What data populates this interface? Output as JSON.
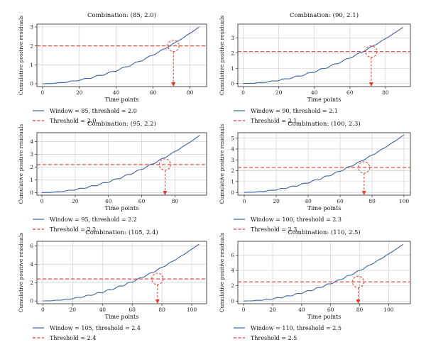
{
  "figure": {
    "colors": {
      "series": "#3a63a8",
      "threshold": "#e8392a",
      "grid": "#c8c8c8"
    }
  },
  "chart_data": [
    {
      "type": "line",
      "title": "Combination: (85, 2.0)",
      "xlabel": "Time points",
      "ylabel": "Cumulative positive residuals",
      "xlim": [
        -3,
        89
      ],
      "ylim": [
        -0.15,
        3.15
      ],
      "xticks": [
        0,
        20,
        40,
        60,
        80
      ],
      "yticks": [
        0,
        1,
        2,
        3
      ],
      "grid": true,
      "window": 85,
      "end_value": 3.0,
      "threshold": 2.0,
      "crossing_x": 71,
      "series_label": "Window = 85, threshold = 2.0",
      "threshold_label": "Threshold = 2.0"
    },
    {
      "type": "line",
      "title": "Combination: (90, 2.1)",
      "xlabel": "Time points",
      "ylabel": "Cumulative positive residuals",
      "xlim": [
        -3,
        94
      ],
      "ylim": [
        -0.2,
        3.9
      ],
      "xticks": [
        0,
        20,
        40,
        60,
        80
      ],
      "yticks": [
        0,
        1,
        2,
        3
      ],
      "grid": true,
      "window": 90,
      "end_value": 3.7,
      "threshold": 2.1,
      "crossing_x": 72,
      "series_label": "Window = 90, threshold = 2.1",
      "threshold_label": "Threshold = 2.1"
    },
    {
      "type": "line",
      "title": "Combination: (95, 2.2)",
      "xlabel": "Time points",
      "ylabel": "Cumulative positive residuals",
      "xlim": [
        -3,
        99
      ],
      "ylim": [
        -0.2,
        4.7
      ],
      "xticks": [
        0,
        20,
        40,
        60,
        80
      ],
      "yticks": [
        0,
        1,
        2,
        3,
        4
      ],
      "grid": true,
      "window": 95,
      "end_value": 4.5,
      "threshold": 2.2,
      "crossing_x": 74,
      "series_label": "Window = 95, threshold = 2.2",
      "threshold_label": "Threshold = 2.2"
    },
    {
      "type": "line",
      "title": "Combination: (100, 2.3)",
      "xlabel": "Time points",
      "ylabel": "Cumulative positive residuals",
      "xlim": [
        -4,
        104
      ],
      "ylim": [
        -0.25,
        5.5
      ],
      "xticks": [
        0,
        20,
        40,
        60,
        80,
        100
      ],
      "yticks": [
        0,
        1,
        2,
        3,
        4,
        5
      ],
      "grid": true,
      "window": 100,
      "end_value": 5.3,
      "threshold": 2.3,
      "crossing_x": 75,
      "series_label": "Window = 100, threshold = 2.3",
      "threshold_label": "Threshold = 2.3"
    },
    {
      "type": "line",
      "title": "Combination: (105, 2.4)",
      "xlabel": "Time points",
      "ylabel": "Cumulative positive residuals",
      "xlim": [
        -4,
        110
      ],
      "ylim": [
        -0.3,
        6.5
      ],
      "xticks": [
        0,
        20,
        40,
        60,
        80,
        100
      ],
      "yticks": [
        0,
        2,
        4,
        6
      ],
      "grid": true,
      "window": 105,
      "end_value": 6.2,
      "threshold": 2.4,
      "crossing_x": 77,
      "series_label": "Window = 105, threshold = 2.4",
      "threshold_label": "Threshold = 2.4"
    },
    {
      "type": "line",
      "title": "Combination: (110, 2.5)",
      "xlabel": "Time points",
      "ylabel": "Cumulative positive residuals",
      "xlim": [
        -4,
        115
      ],
      "ylim": [
        -0.35,
        7.8
      ],
      "xticks": [
        0,
        20,
        40,
        60,
        80,
        100
      ],
      "yticks": [
        0,
        2,
        4,
        6
      ],
      "grid": true,
      "window": 110,
      "end_value": 7.4,
      "threshold": 2.5,
      "crossing_x": 79,
      "series_label": "Window = 110, threshold = 2.5",
      "threshold_label": "Threshold = 2.5"
    }
  ]
}
